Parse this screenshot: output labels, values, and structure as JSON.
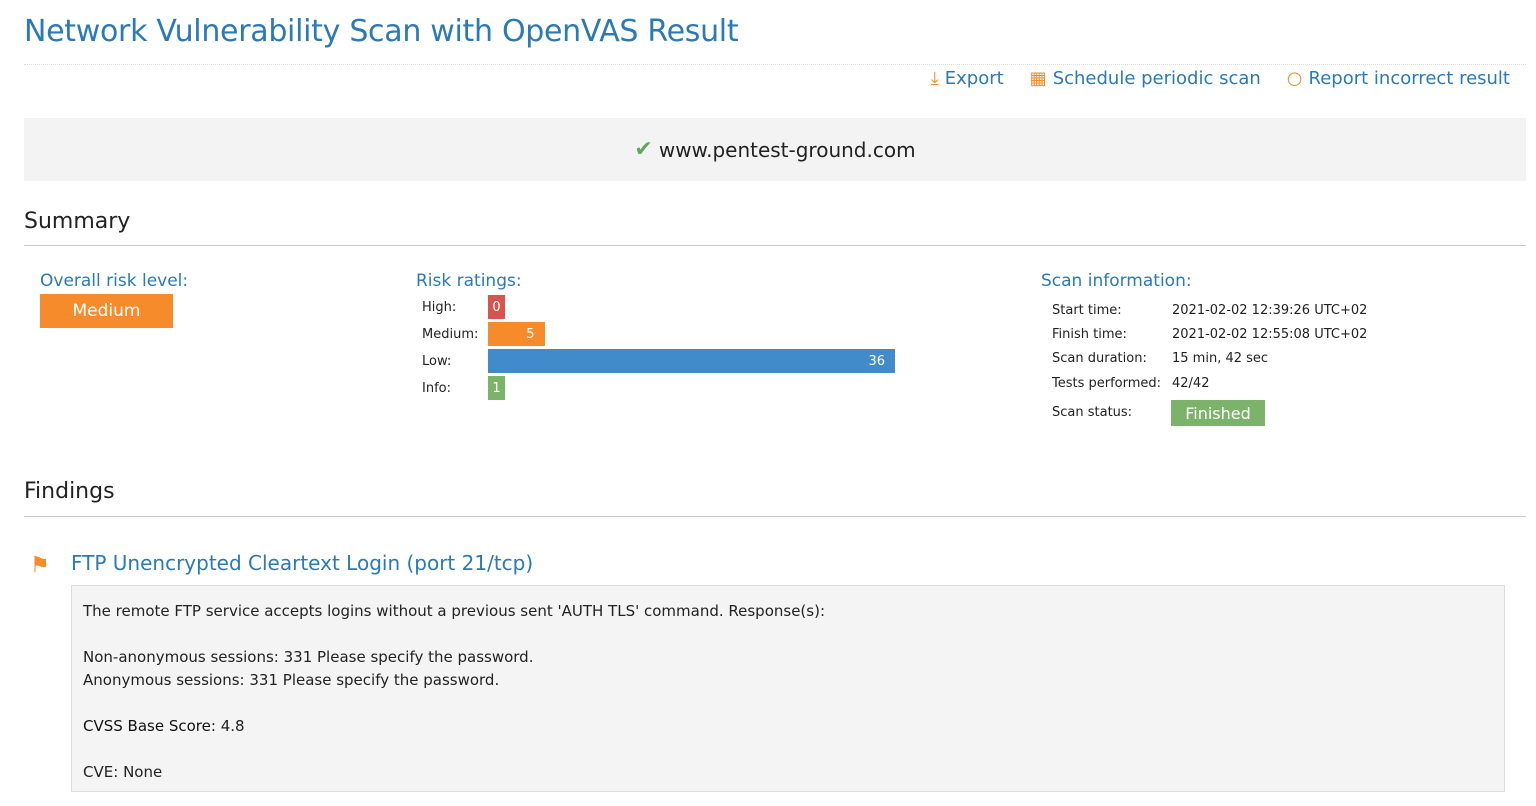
{
  "title": "Network Vulnerability Scan with OpenVAS Result",
  "actions": {
    "export": "Export",
    "schedule": "Schedule periodic scan",
    "report": "Report incorrect result"
  },
  "target": "www.pentest-ground.com",
  "summary": {
    "heading": "Summary",
    "overall_label": "Overall risk level:",
    "overall_value": "Medium",
    "risk_label": "Risk ratings:",
    "ratings": [
      {
        "label": "High:",
        "value": 0,
        "color": "#d9534f"
      },
      {
        "label": "Medium:",
        "value": 5,
        "color": "#f68b2b"
      },
      {
        "label": "Low:",
        "value": 36,
        "color": "#428bca"
      },
      {
        "label": "Info:",
        "value": 1,
        "color": "#7cb36a"
      }
    ],
    "scan_label": "Scan information:",
    "scan": [
      {
        "k": "Start time:",
        "v": "2021-02-02 12:39:26 UTC+02"
      },
      {
        "k": "Finish time:",
        "v": "2021-02-02 12:55:08 UTC+02"
      },
      {
        "k": "Scan duration:",
        "v": "15 min, 42 sec"
      },
      {
        "k": "Tests performed:",
        "v": "42/42"
      },
      {
        "k": "Scan status:",
        "v": "Finished"
      }
    ]
  },
  "findings": {
    "heading": "Findings",
    "items": [
      {
        "title": "FTP Unencrypted Cleartext Login (port 21/tcp)",
        "line1": "The remote FTP service accepts logins without a previous sent 'AUTH TLS' command. Response(s):",
        "line2": "Non-anonymous sessions: 331 Please specify the password.",
        "line3": "Anonymous sessions: 331 Please specify the password.",
        "cvss_label": "CVSS Base Score:",
        "cvss": "4.8",
        "cve_label": "CVE:",
        "cve": "None"
      }
    ]
  }
}
